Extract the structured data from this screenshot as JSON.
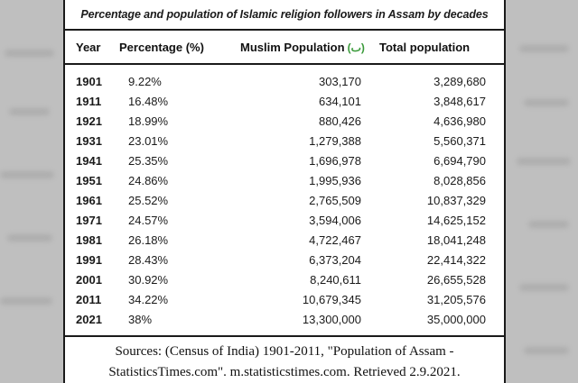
{
  "title": "Percentage and population of Islamic religion followers in Assam by decades",
  "headers": {
    "year": "Year",
    "percentage": "Percentage (%)",
    "muslim_population": "Muslim Population",
    "muslim_symbol": "(ٮ)",
    "total_population": "Total population"
  },
  "rows": [
    {
      "year": "1901",
      "percentage": "9.22%",
      "muslim": "303,170",
      "total": "3,289,680"
    },
    {
      "year": "1911",
      "percentage": "16.48%",
      "muslim": "634,101",
      "total": "3,848,617"
    },
    {
      "year": "1921",
      "percentage": "18.99%",
      "muslim": "880,426",
      "total": "4,636,980"
    },
    {
      "year": "1931",
      "percentage": "23.01%",
      "muslim": "1,279,388",
      "total": "5,560,371"
    },
    {
      "year": "1941",
      "percentage": "25.35%",
      "muslim": "1,696,978",
      "total": "6,694,790"
    },
    {
      "year": "1951",
      "percentage": "24.86%",
      "muslim": "1,995,936",
      "total": "8,028,856"
    },
    {
      "year": "1961",
      "percentage": "25.52%",
      "muslim": "2,765,509",
      "total": "10,837,329"
    },
    {
      "year": "1971",
      "percentage": "24.57%",
      "muslim": "3,594,006",
      "total": "14,625,152"
    },
    {
      "year": "1981",
      "percentage": "26.18%",
      "muslim": "4,722,467",
      "total": "18,041,248"
    },
    {
      "year": "1991",
      "percentage": "28.43%",
      "muslim": "6,373,204",
      "total": "22,414,322"
    },
    {
      "year": "2001",
      "percentage": "30.92%",
      "muslim": "8,240,611",
      "total": "26,655,528"
    },
    {
      "year": "2011",
      "percentage": "34.22%",
      "muslim": "10,679,345",
      "total": "31,205,576"
    },
    {
      "year": "2021",
      "percentage": "38%",
      "muslim": "13,300,000",
      "total": "35,000,000"
    }
  ],
  "sources": {
    "line1": "Sources: (Census of India) 1901-2011, \"Population of Assam -",
    "line2": "StatisticsTimes.com\". m.statisticstimes.com. Retrieved 2.9.2021."
  },
  "colors": {
    "background": "#bfbfbf",
    "paper": "#ffffff",
    "rule": "#1a1a1a",
    "symbol": "#3a9a3a"
  }
}
